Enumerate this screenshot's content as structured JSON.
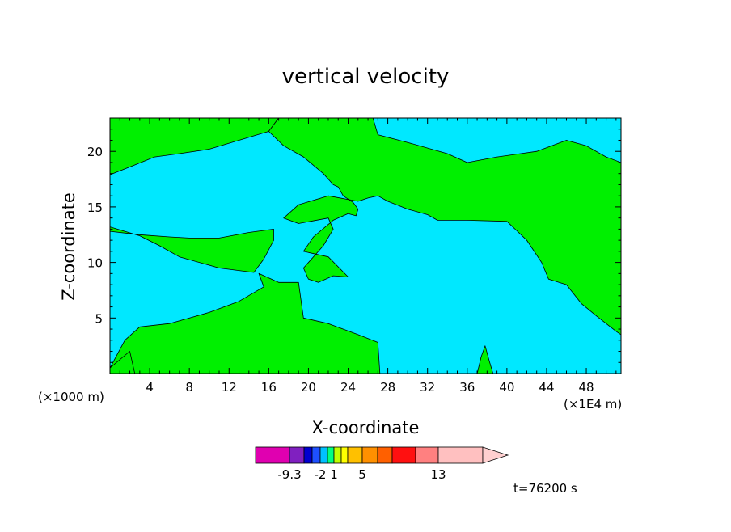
{
  "chart_data": {
    "type": "heatmap",
    "title": "vertical velocity",
    "xlabel": "X-coordinate",
    "ylabel": "Z-coordinate",
    "x_unit_left": "(×1000 m)",
    "x_unit_right": "(×1E4 m)",
    "xlim": [
      0,
      51.5
    ],
    "ylim": [
      0,
      23
    ],
    "xticks": [
      4,
      8,
      12,
      16,
      20,
      24,
      28,
      32,
      36,
      40,
      44,
      48
    ],
    "xtick_labels": [
      "4",
      "8",
      "12",
      "16",
      "20",
      "24",
      "28",
      "32",
      "36",
      "40",
      "44",
      "48"
    ],
    "yticks": [
      5,
      10,
      15,
      20
    ],
    "ytick_labels": [
      "5",
      "10",
      "15",
      "20"
    ],
    "time_label": "t=76200 s",
    "colorbar": {
      "colors": [
        "#e000b0",
        "#8020c0",
        "#0000d0",
        "#1e50ff",
        "#00c0ff",
        "#00ff80",
        "#c0ff00",
        "#ffff00",
        "#ffc000",
        "#ff9000",
        "#ff6000",
        "#ff1010",
        "#ff8080",
        "#ffc0c0",
        "#ffd0d0"
      ],
      "labels": [
        "-9.3",
        "-2",
        "1",
        "5",
        "13"
      ]
    },
    "fill_colors": {
      "negative": "#00e8ff",
      "positive": "#00f000"
    },
    "regions": [
      {
        "sign": "positive",
        "points": [
          [
            0,
            0
          ],
          [
            0,
            0.5
          ],
          [
            1.5,
            3
          ],
          [
            3,
            4.2
          ],
          [
            6,
            4.5
          ],
          [
            10,
            5.5
          ],
          [
            13,
            6.5
          ],
          [
            15.5,
            7.8
          ],
          [
            15,
            9
          ],
          [
            17,
            8.2
          ],
          [
            19,
            8.2
          ],
          [
            19.5,
            5
          ],
          [
            22,
            4.5
          ],
          [
            25,
            3.5
          ],
          [
            27,
            2.8
          ],
          [
            27.2,
            0
          ]
        ]
      },
      {
        "sign": "positive",
        "points": [
          [
            0,
            0.5
          ],
          [
            2,
            2
          ],
          [
            2.5,
            0
          ],
          [
            0,
            0
          ]
        ]
      },
      {
        "sign": "positive",
        "points": [
          [
            37,
            0
          ],
          [
            37.4,
            1.5
          ],
          [
            37.8,
            2.5
          ],
          [
            38.2,
            1.2
          ],
          [
            38.6,
            0
          ]
        ]
      },
      {
        "sign": "positive",
        "points": [
          [
            0,
            23
          ],
          [
            0,
            17.9
          ],
          [
            2,
            18.6
          ],
          [
            4.5,
            19.5
          ],
          [
            7,
            19.8
          ],
          [
            10,
            20.2
          ],
          [
            13,
            21
          ],
          [
            16,
            21.8
          ],
          [
            17,
            23
          ]
        ]
      },
      {
        "sign": "positive",
        "points": [
          [
            0,
            13.2
          ],
          [
            3,
            12.4
          ],
          [
            5,
            11.5
          ],
          [
            7,
            10.5
          ],
          [
            11,
            9.5
          ],
          [
            14.5,
            9.1
          ],
          [
            15.5,
            10.3
          ],
          [
            16.5,
            12
          ],
          [
            16.5,
            13
          ],
          [
            14,
            12.7
          ],
          [
            11,
            12.2
          ],
          [
            8,
            12.2
          ],
          [
            6,
            12.3
          ],
          [
            3,
            12.5
          ],
          [
            0,
            12.8
          ]
        ]
      },
      {
        "sign": "positive",
        "points": [
          [
            17.5,
            14
          ],
          [
            19,
            15.2
          ],
          [
            22,
            16
          ],
          [
            25,
            15.5
          ],
          [
            26,
            15.8
          ],
          [
            27,
            16
          ],
          [
            28,
            15.5
          ],
          [
            30,
            14.8
          ],
          [
            32,
            14.3
          ],
          [
            33,
            13.8
          ],
          [
            36,
            13.8
          ],
          [
            40,
            13.7
          ],
          [
            42,
            12
          ],
          [
            43.5,
            10
          ],
          [
            44.2,
            8.5
          ],
          [
            46,
            8
          ],
          [
            47.5,
            6.3
          ],
          [
            49,
            5.2
          ],
          [
            51,
            3.8
          ],
          [
            51.5,
            3.5
          ],
          [
            51.5,
            19
          ],
          [
            50,
            19.5
          ],
          [
            48,
            20.5
          ],
          [
            46,
            21
          ],
          [
            43,
            20
          ],
          [
            39,
            19.5
          ],
          [
            36,
            19
          ],
          [
            34,
            19.8
          ],
          [
            30,
            20.8
          ],
          [
            27,
            21.5
          ],
          [
            26.5,
            23
          ],
          [
            17,
            23
          ],
          [
            16,
            21.8
          ],
          [
            17.5,
            20.5
          ],
          [
            19.5,
            19.5
          ],
          [
            21.5,
            18
          ],
          [
            22.5,
            17
          ],
          [
            23,
            16.8
          ],
          [
            23.5,
            16
          ],
          [
            24.5,
            15.4
          ],
          [
            25,
            14.8
          ],
          [
            24.8,
            14.2
          ],
          [
            24,
            14.4
          ],
          [
            22.5,
            13.8
          ],
          [
            20.5,
            12.3
          ],
          [
            19.5,
            11
          ],
          [
            22,
            10.5
          ],
          [
            24,
            8.7
          ],
          [
            22.5,
            8.8
          ],
          [
            21,
            8.2
          ],
          [
            20,
            8.5
          ],
          [
            19.5,
            9.5
          ],
          [
            21.5,
            11.5
          ],
          [
            22.5,
            13
          ],
          [
            22,
            14
          ],
          [
            19,
            13.5
          ],
          [
            17.5,
            14
          ]
        ]
      }
    ]
  }
}
